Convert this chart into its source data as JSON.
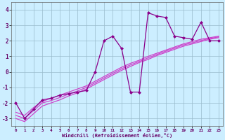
{
  "xlabel": "Windchill (Refroidissement éolien,°C)",
  "x_hours": [
    0,
    1,
    2,
    3,
    4,
    5,
    6,
    7,
    8,
    9,
    10,
    11,
    12,
    13,
    14,
    15,
    16,
    17,
    18,
    19,
    20,
    21,
    22,
    23
  ],
  "y_main": [
    -2.0,
    -3.0,
    -2.4,
    -1.8,
    -1.7,
    -1.5,
    -1.4,
    -1.3,
    -1.2,
    0.0,
    2.0,
    2.3,
    1.5,
    -1.3,
    -1.3,
    3.8,
    3.6,
    3.5,
    2.3,
    2.2,
    2.1,
    3.2,
    2.0,
    2.0
  ],
  "y_line1": [
    -2.6,
    -2.8,
    -2.3,
    -1.9,
    -1.7,
    -1.5,
    -1.3,
    -1.1,
    -0.9,
    -0.6,
    -0.3,
    0.0,
    0.3,
    0.55,
    0.75,
    1.0,
    1.2,
    1.4,
    1.6,
    1.8,
    1.95,
    2.1,
    2.2,
    2.3
  ],
  "y_line2": [
    -3.0,
    -3.2,
    -2.7,
    -2.2,
    -2.0,
    -1.8,
    -1.55,
    -1.35,
    -1.1,
    -0.8,
    -0.5,
    -0.2,
    0.1,
    0.35,
    0.6,
    0.8,
    1.05,
    1.25,
    1.45,
    1.65,
    1.8,
    1.95,
    2.1,
    2.2
  ],
  "y_line3": [
    -2.8,
    -3.0,
    -2.5,
    -2.0,
    -1.85,
    -1.65,
    -1.43,
    -1.23,
    -1.0,
    -0.7,
    -0.4,
    -0.1,
    0.2,
    0.45,
    0.67,
    0.9,
    1.12,
    1.33,
    1.53,
    1.73,
    1.87,
    2.02,
    2.15,
    2.25
  ],
  "color_main": "#8b008b",
  "color_lines": "#cc44cc",
  "bg_color": "#cceeff",
  "grid_color": "#99bbcc",
  "ylim": [
    -3.5,
    4.5
  ],
  "yticks": [
    -3,
    -2,
    -1,
    0,
    1,
    2,
    3,
    4
  ],
  "xlim": [
    -0.5,
    23.5
  ]
}
